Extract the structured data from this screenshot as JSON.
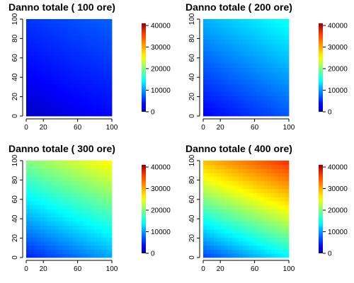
{
  "chart_data": [
    {
      "type": "heatmap",
      "title": "Danno totale ( 100  ore)",
      "xlabel": "",
      "ylabel": "",
      "xlim": [
        0,
        100
      ],
      "ylim": [
        0,
        100
      ],
      "x_ticks": [
        0,
        20,
        60,
        100
      ],
      "y_ticks": [
        0,
        20,
        40,
        60,
        80,
        100
      ],
      "z_range": [
        0,
        41000
      ],
      "colorbar_ticks": [
        0,
        10000,
        20000,
        30000,
        40000
      ],
      "z_at_corners": {
        "x0_y0": 1500,
        "x100_y0": 3500,
        "x0_y100": 5500,
        "x100_y100": 7500
      },
      "grid": false
    },
    {
      "type": "heatmap",
      "title": "Danno totale ( 200  ore)",
      "xlabel": "",
      "ylabel": "",
      "xlim": [
        0,
        100
      ],
      "ylim": [
        0,
        100
      ],
      "x_ticks": [
        0,
        20,
        60,
        100
      ],
      "y_ticks": [
        0,
        20,
        40,
        60,
        80,
        100
      ],
      "z_range": [
        0,
        41000
      ],
      "colorbar_ticks": [
        0,
        10000,
        20000,
        30000,
        40000
      ],
      "z_at_corners": {
        "x0_y0": 3000,
        "x100_y0": 7000,
        "x0_y100": 11000,
        "x100_y100": 15000
      },
      "grid": false
    },
    {
      "type": "heatmap",
      "title": "Danno totale ( 300  ore)",
      "xlabel": "",
      "ylabel": "",
      "xlim": [
        0,
        100
      ],
      "ylim": [
        0,
        100
      ],
      "x_ticks": [
        0,
        20,
        60,
        100
      ],
      "y_ticks": [
        0,
        20,
        40,
        60,
        80,
        100
      ],
      "z_range": [
        0,
        41000
      ],
      "colorbar_ticks": [
        0,
        10000,
        20000,
        30000,
        40000
      ],
      "z_at_corners": {
        "x0_y0": 4500,
        "x100_y0": 10500,
        "x0_y100": 20000,
        "x100_y100": 26000
      },
      "grid": false
    },
    {
      "type": "heatmap",
      "title": "Danno totale ( 400  ore)",
      "xlabel": "",
      "ylabel": "",
      "xlim": [
        0,
        100
      ],
      "ylim": [
        0,
        100
      ],
      "x_ticks": [
        0,
        20,
        60,
        100
      ],
      "y_ticks": [
        0,
        20,
        40,
        60,
        80,
        100
      ],
      "z_range": [
        0,
        41000
      ],
      "colorbar_ticks": [
        0,
        10000,
        20000,
        30000,
        40000
      ],
      "z_at_corners": {
        "x0_y0": 6000,
        "x100_y0": 14000,
        "x0_y100": 29000,
        "x100_y100": 37000
      },
      "grid": false
    }
  ]
}
